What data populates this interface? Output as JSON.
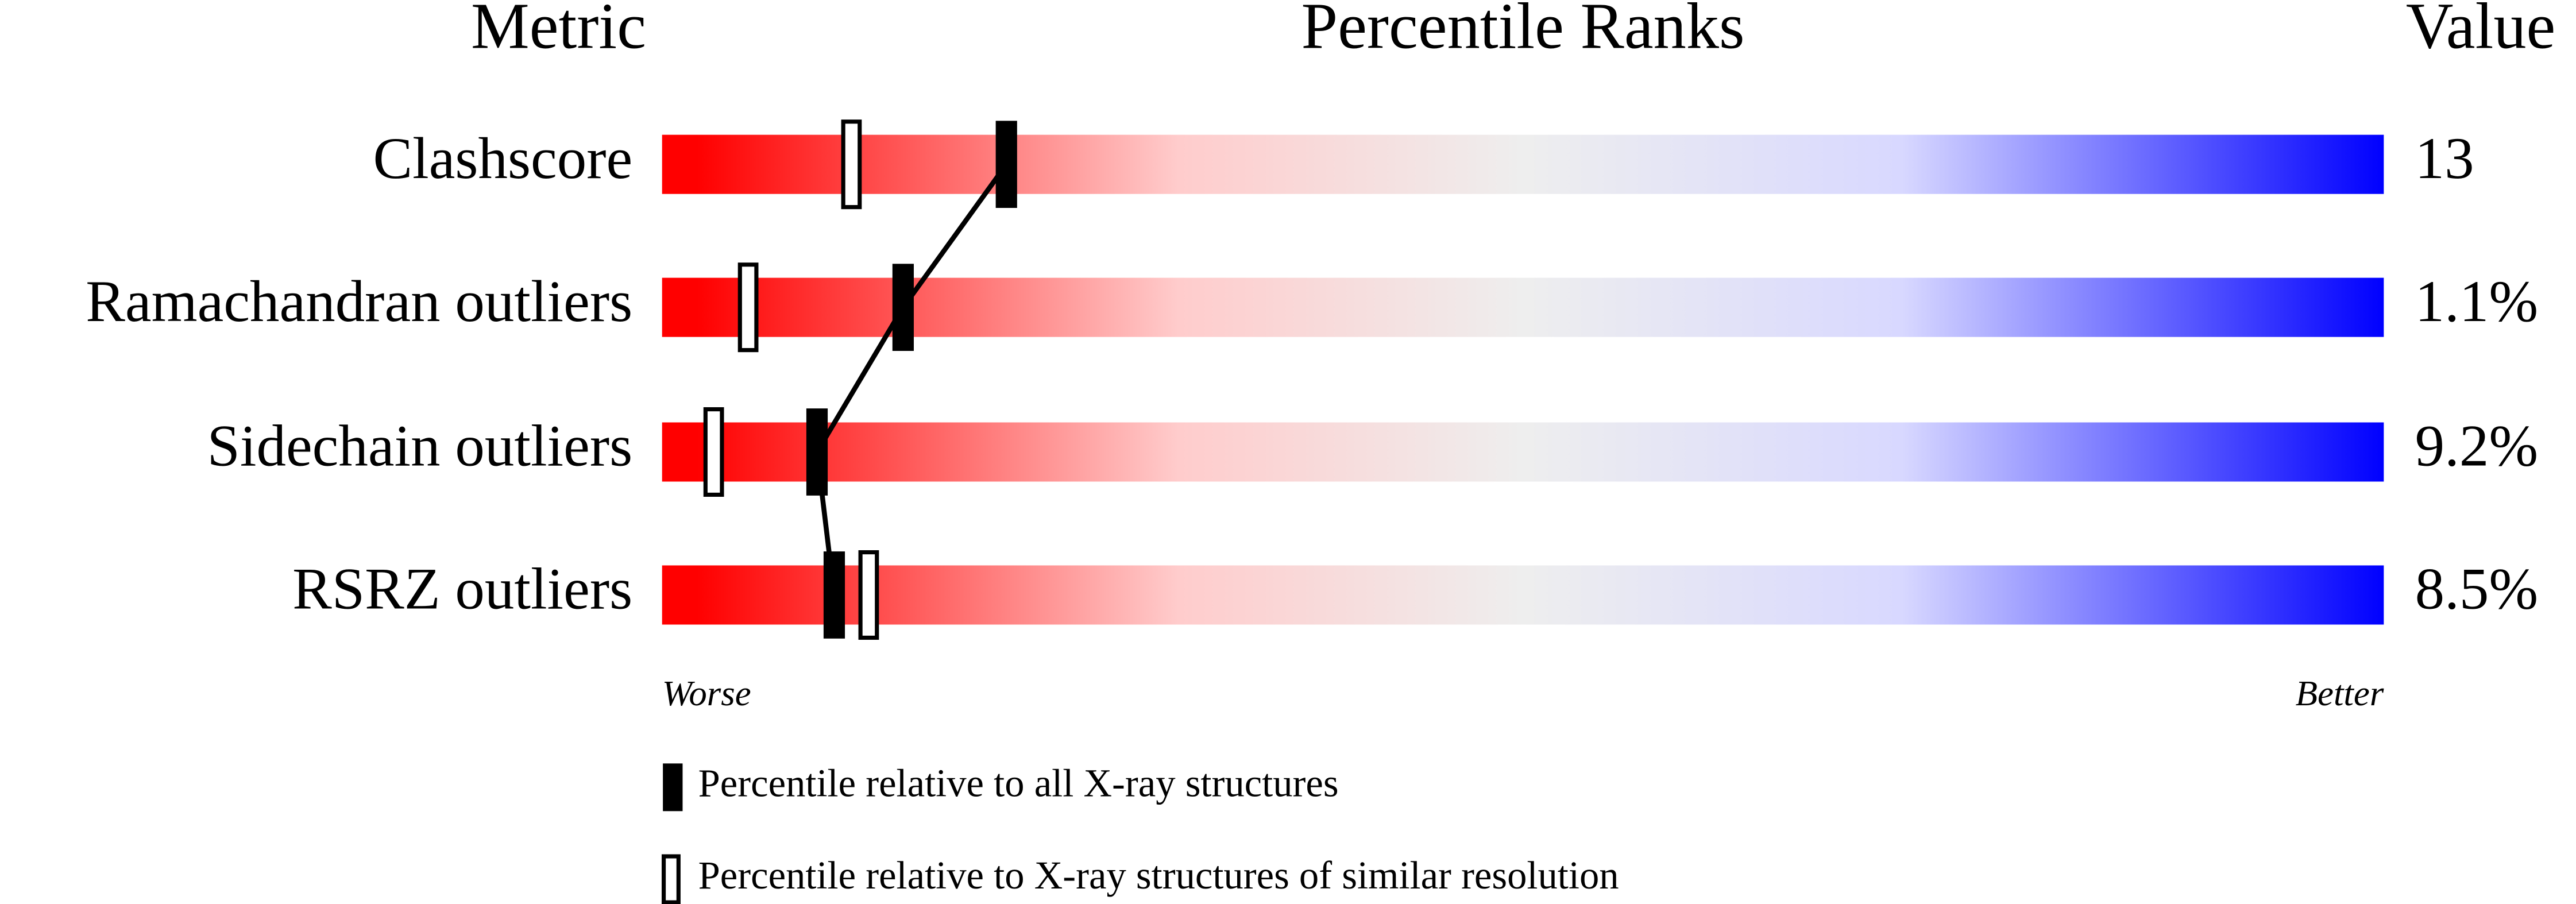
{
  "chart_data": {
    "type": "percentile",
    "headers": {
      "metric": "Metric",
      "ranks": "Percentile Ranks",
      "value": "Value"
    },
    "categories": [
      "Clashscore",
      "Ramachandran outliers",
      "Sidechain outliers",
      "RSRZ outliers"
    ],
    "value_labels": [
      "13",
      "1.1%",
      "9.2%",
      "8.5%"
    ],
    "xlim": [
      0,
      100
    ],
    "axis_labels": {
      "left": "Worse",
      "right": "Better"
    },
    "gradient": [
      "#ff0000",
      "#ffcccc",
      "#eeeeee",
      "#d8d8ff",
      "#0000ff"
    ],
    "series": [
      {
        "name": "Percentile relative to all X-ray structures",
        "marker": "filled",
        "color": "#000000",
        "values": [
          20,
          14,
          9,
          10
        ]
      },
      {
        "name": "Percentile relative to X-ray structures of similar resolution",
        "marker": "open",
        "color": "#000000",
        "values": [
          11,
          5,
          3,
          12
        ]
      }
    ]
  }
}
